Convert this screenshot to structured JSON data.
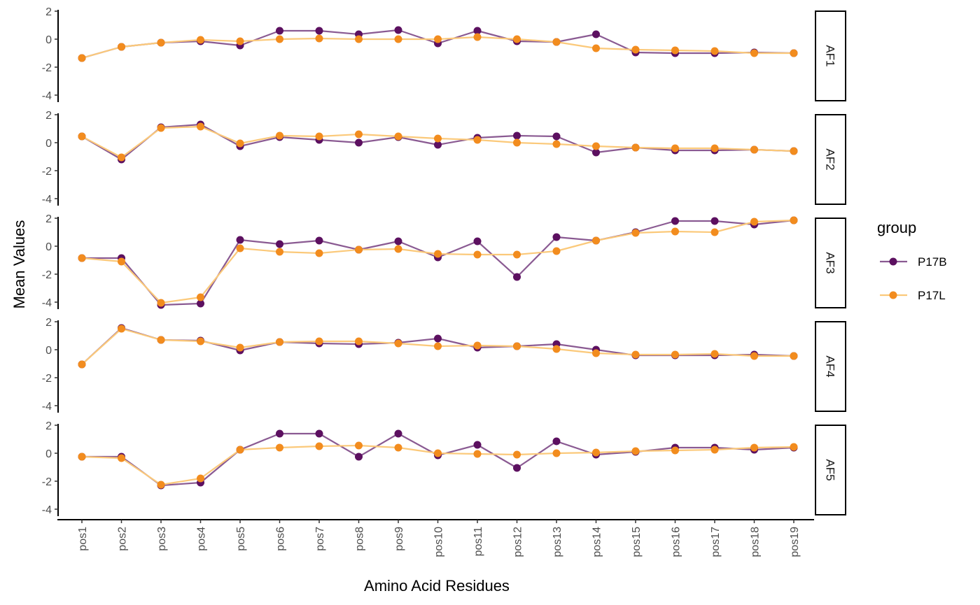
{
  "chart_data": {
    "type": "line",
    "xlabel": "Amino Acid Residues",
    "ylabel": "Mean Values",
    "ylim": [
      -4.5,
      2.2
    ],
    "yticks": [
      2,
      0,
      -2,
      -4
    ],
    "grid": false,
    "legend": {
      "title": "group",
      "position": "right"
    },
    "categories": [
      "pos1",
      "pos2",
      "pos3",
      "pos4",
      "pos5",
      "pos6",
      "pos7",
      "pos8",
      "pos9",
      "pos10",
      "pos11",
      "pos12",
      "pos13",
      "pos14",
      "pos15",
      "pos16",
      "pos17",
      "pos18",
      "pos19"
    ],
    "series_meta": [
      {
        "name": "P17B",
        "point_color": "#5c1060",
        "line_color": "#8a5a92"
      },
      {
        "name": "P17L",
        "point_color": "#f28c1e",
        "line_color": "#fbc97a"
      }
    ],
    "panels": [
      {
        "label": "AF1",
        "series": [
          {
            "name": "P17B",
            "values": [
              -1.35,
              -0.55,
              -0.25,
              -0.15,
              -0.45,
              0.6,
              0.6,
              0.35,
              0.65,
              -0.3,
              0.6,
              -0.15,
              -0.2,
              0.35,
              -0.95,
              -1.0,
              -1.0,
              -0.95,
              -1.0
            ]
          },
          {
            "name": "P17L",
            "values": [
              -1.35,
              -0.55,
              -0.25,
              -0.05,
              -0.15,
              0.0,
              0.05,
              0.0,
              0.0,
              0.0,
              0.15,
              0.0,
              -0.2,
              -0.65,
              -0.75,
              -0.8,
              -0.85,
              -1.0,
              -1.0
            ]
          }
        ]
      },
      {
        "label": "AF2",
        "series": [
          {
            "name": "P17B",
            "values": [
              0.45,
              -1.2,
              1.1,
              1.3,
              -0.25,
              0.4,
              0.2,
              0.0,
              0.4,
              -0.15,
              0.35,
              0.5,
              0.45,
              -0.7,
              -0.35,
              -0.55,
              -0.55,
              -0.5,
              -0.6
            ]
          },
          {
            "name": "P17L",
            "values": [
              0.45,
              -1.05,
              1.05,
              1.15,
              -0.05,
              0.5,
              0.45,
              0.6,
              0.45,
              0.3,
              0.2,
              0.0,
              -0.1,
              -0.25,
              -0.35,
              -0.4,
              -0.4,
              -0.5,
              -0.6
            ]
          }
        ]
      },
      {
        "label": "AF3",
        "series": [
          {
            "name": "P17B",
            "values": [
              -0.85,
              -0.85,
              -4.2,
              -4.1,
              0.45,
              0.15,
              0.4,
              -0.25,
              0.35,
              -0.8,
              0.35,
              -2.2,
              0.65,
              0.4,
              1.0,
              1.8,
              1.8,
              1.55,
              1.85
            ]
          },
          {
            "name": "P17L",
            "values": [
              -0.85,
              -1.1,
              -4.05,
              -3.65,
              -0.15,
              -0.4,
              -0.5,
              -0.25,
              -0.2,
              -0.55,
              -0.6,
              -0.6,
              -0.35,
              0.4,
              0.95,
              1.05,
              1.0,
              1.75,
              1.85
            ]
          }
        ]
      },
      {
        "label": "AF4",
        "series": [
          {
            "name": "P17B",
            "values": [
              -1.05,
              1.55,
              0.7,
              0.65,
              -0.05,
              0.55,
              0.45,
              0.4,
              0.5,
              0.8,
              0.15,
              0.25,
              0.4,
              0.0,
              -0.4,
              -0.4,
              -0.4,
              -0.35,
              -0.45
            ]
          },
          {
            "name": "P17L",
            "values": [
              -1.05,
              1.5,
              0.7,
              0.6,
              0.15,
              0.55,
              0.6,
              0.6,
              0.45,
              0.25,
              0.3,
              0.25,
              0.05,
              -0.25,
              -0.35,
              -0.35,
              -0.3,
              -0.45,
              -0.45
            ]
          }
        ]
      },
      {
        "label": "AF5",
        "series": [
          {
            "name": "P17B",
            "values": [
              -0.25,
              -0.25,
              -2.3,
              -2.1,
              0.25,
              1.4,
              1.4,
              -0.25,
              1.4,
              -0.15,
              0.6,
              -1.05,
              0.85,
              -0.1,
              0.1,
              0.4,
              0.4,
              0.25,
              0.4
            ]
          },
          {
            "name": "P17L",
            "values": [
              -0.25,
              -0.35,
              -2.25,
              -1.8,
              0.25,
              0.4,
              0.5,
              0.55,
              0.4,
              0.0,
              -0.05,
              -0.1,
              0.0,
              0.05,
              0.15,
              0.2,
              0.25,
              0.4,
              0.45
            ]
          }
        ]
      }
    ]
  }
}
